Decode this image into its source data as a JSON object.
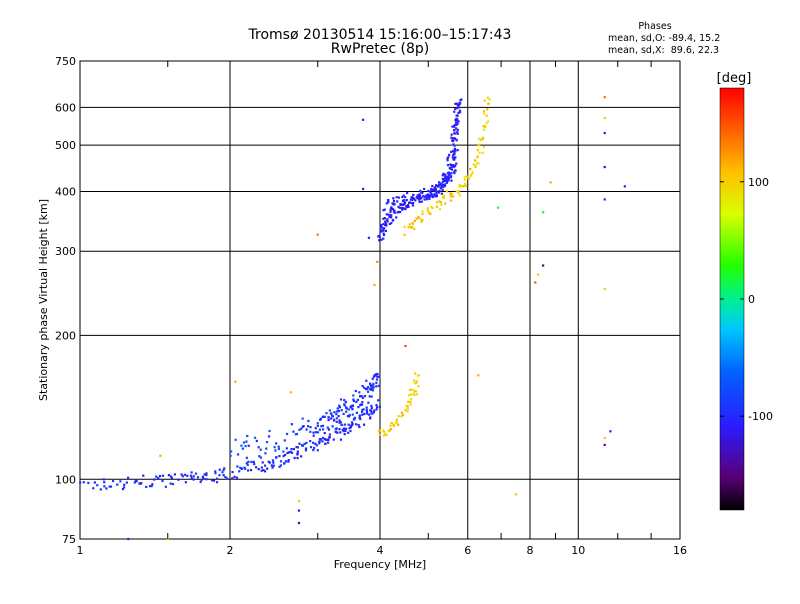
{
  "chart_data": {
    "type": "scatter",
    "title": "Tromsø 20130514 15:16:00–15:17:43",
    "subtitle": "RwPretec (8p)",
    "xlabel": "Frequency [MHz]",
    "ylabel": "Stationary phase Virtual Height [km]",
    "xscale": "log2",
    "yscale": "log",
    "xlim": [
      1,
      16
    ],
    "ylim": [
      75,
      750
    ],
    "x_ticks": [
      1,
      2,
      4,
      6,
      8,
      10,
      16
    ],
    "x_tick_labels": [
      "1",
      "2",
      "4",
      "6",
      "8",
      "10",
      "16"
    ],
    "y_ticks": [
      75,
      100,
      200,
      300,
      400,
      500,
      600,
      750
    ],
    "y_tick_labels": [
      "75",
      "100",
      "200",
      "300",
      "400",
      "500",
      "600",
      "750"
    ],
    "grid": true,
    "phases_legend": {
      "heading": "Phases",
      "line_o": "mean, sd,O: -89.4, 15.2",
      "line_x": "mean, sd,X:  89.6, 22.3"
    },
    "colorbar": {
      "label": "[deg]",
      "range": [
        -180,
        180
      ],
      "ticks": [
        100,
        0,
        -100
      ],
      "tick_labels": [
        "100",
        "0",
        "-100"
      ]
    },
    "o_trace_f": [
      {
        "x": [
          1.0,
          1.2,
          1.4,
          1.6,
          1.8,
          2.0,
          2.2,
          2.4,
          2.6,
          2.8,
          3.0,
          3.2,
          3.4,
          3.6,
          3.8,
          3.95
        ],
        "y": [
          97,
          98,
          99,
          100,
          101,
          103,
          106,
          108,
          111,
          115,
          119,
          123,
          127,
          132,
          138,
          145
        ]
      }
    ],
    "o_trace_f1_cusp": [
      {
        "x": [
          3.0,
          3.2,
          3.4,
          3.6,
          3.8,
          3.95
        ],
        "y": [
          128,
          133,
          139,
          147,
          155,
          165
        ]
      }
    ],
    "o_trace_f2": [
      {
        "x": [
          3.98,
          4.1,
          4.3,
          4.6,
          5.0,
          5.3,
          5.5,
          5.6,
          5.7,
          5.75
        ],
        "y": [
          320,
          345,
          365,
          380,
          395,
          410,
          440,
          500,
          560,
          620
        ]
      }
    ],
    "o_trace_f2_upper": [
      {
        "x": [
          4.1,
          4.4,
          4.8,
          5.2,
          5.5,
          5.7
        ],
        "y": [
          370,
          385,
          395,
          400,
          420,
          480
        ]
      }
    ],
    "x_trace_f": [
      {
        "x": [
          4.0,
          4.2,
          4.4,
          4.6,
          4.7,
          4.75
        ],
        "y": [
          125,
          128,
          135,
          145,
          155,
          165
        ]
      }
    ],
    "x_trace_f2": [
      {
        "x": [
          4.5,
          4.8,
          5.2,
          5.6,
          6.0,
          6.3,
          6.5,
          6.6
        ],
        "y": [
          330,
          350,
          375,
          395,
          420,
          470,
          540,
          630
        ]
      }
    ],
    "scattered_echoes": [
      {
        "x": 1.25,
        "y": 75,
        "phase": -110
      },
      {
        "x": 1.5,
        "y": 75,
        "phase": 100
      },
      {
        "x": 1.45,
        "y": 112,
        "phase": 120
      },
      {
        "x": 2.05,
        "y": 160,
        "phase": 120
      },
      {
        "x": 2.65,
        "y": 152,
        "phase": 115
      },
      {
        "x": 2.75,
        "y": 90,
        "phase": 110
      },
      {
        "x": 2.75,
        "y": 86,
        "phase": -120
      },
      {
        "x": 2.75,
        "y": 81,
        "phase": -130
      },
      {
        "x": 3.0,
        "y": 325,
        "phase": 140
      },
      {
        "x": 3.7,
        "y": 565,
        "phase": -110
      },
      {
        "x": 3.7,
        "y": 405,
        "phase": -115
      },
      {
        "x": 3.8,
        "y": 320,
        "phase": -110
      },
      {
        "x": 3.95,
        "y": 285,
        "phase": 130
      },
      {
        "x": 3.9,
        "y": 255,
        "phase": 120
      },
      {
        "x": 4.5,
        "y": 190,
        "phase": 160
      },
      {
        "x": 6.3,
        "y": 165,
        "phase": 120
      },
      {
        "x": 6.9,
        "y": 370,
        "phase": 20
      },
      {
        "x": 7.5,
        "y": 93,
        "phase": 110
      },
      {
        "x": 8.2,
        "y": 258,
        "phase": 150
      },
      {
        "x": 8.3,
        "y": 268,
        "phase": 100
      },
      {
        "x": 8.5,
        "y": 362,
        "phase": 20
      },
      {
        "x": 8.5,
        "y": 280,
        "phase": -150
      },
      {
        "x": 8.8,
        "y": 418,
        "phase": 120
      },
      {
        "x": 11.3,
        "y": 630,
        "phase": 140
      },
      {
        "x": 11.3,
        "y": 570,
        "phase": 110
      },
      {
        "x": 11.3,
        "y": 530,
        "phase": -120
      },
      {
        "x": 11.3,
        "y": 450,
        "phase": -140
      },
      {
        "x": 11.3,
        "y": 385,
        "phase": -100
      },
      {
        "x": 11.3,
        "y": 250,
        "phase": 100
      },
      {
        "x": 11.3,
        "y": 122,
        "phase": 110
      },
      {
        "x": 11.3,
        "y": 118,
        "phase": -130
      },
      {
        "x": 11.6,
        "y": 126,
        "phase": -110
      },
      {
        "x": 12.4,
        "y": 410,
        "phase": -110
      }
    ]
  },
  "colors": {
    "background": "#ffffff",
    "axes": "#000000",
    "grid": "#000000"
  }
}
